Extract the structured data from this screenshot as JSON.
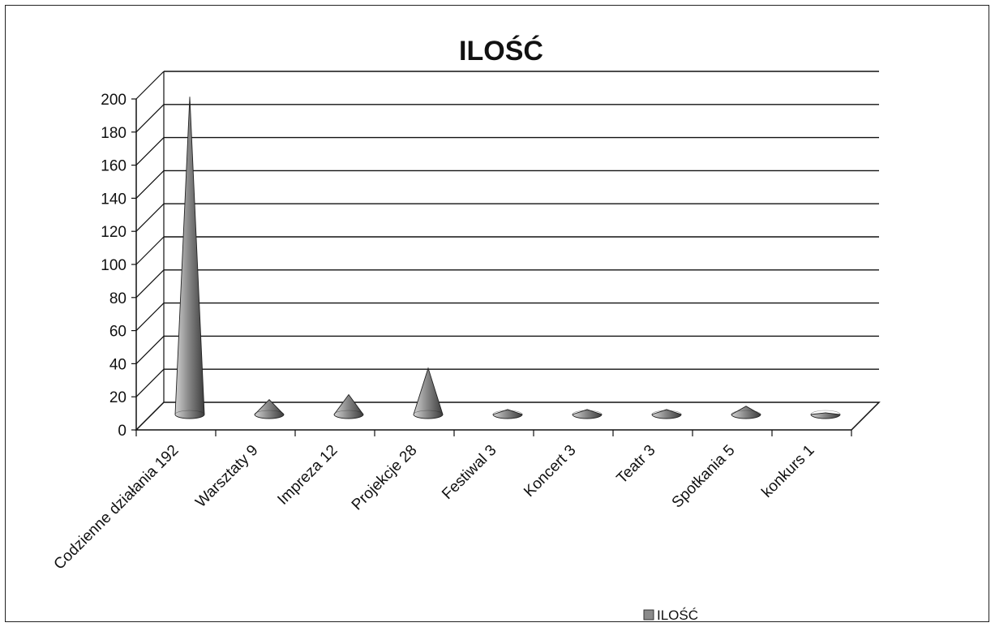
{
  "chart_data": {
    "type": "bar",
    "title": "ILOŚĆ",
    "categories": [
      "Codzienne działania 192",
      "Warsztaty 9",
      "Impreza 12",
      "Projekcje 28",
      "Festiwal 3",
      "Koncert 3",
      "Teatr 3",
      "Spotkania 5",
      "konkurs 1"
    ],
    "series": [
      {
        "name": "ILOŚĆ",
        "values": [
          192,
          9,
          12,
          28,
          3,
          3,
          3,
          5,
          1
        ]
      }
    ],
    "ylim": [
      0,
      200
    ],
    "yticks": [
      "0",
      "20",
      "40",
      "60",
      "80",
      "100",
      "120",
      "140",
      "160",
      "180",
      "200"
    ],
    "grid": true,
    "legend": "bottom",
    "style": "3d-cone",
    "colors": {
      "cone": "#8a8a8a",
      "cone_dark": "#3c3c3c",
      "cone_light": "#d2d2d2",
      "grid": "#111111"
    }
  }
}
